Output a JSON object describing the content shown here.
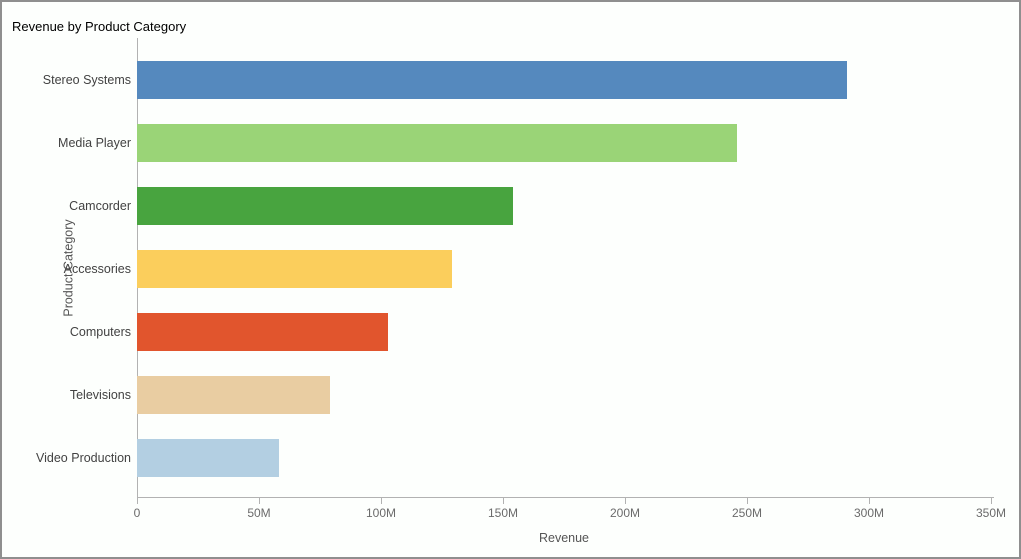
{
  "title": "Revenue by Product Category",
  "chart_data": {
    "type": "bar",
    "orientation": "horizontal",
    "title": "Revenue by Product Category",
    "xlabel": "Revenue",
    "ylabel": "Product Category",
    "unit": "M",
    "xlim_millions": [
      0,
      350
    ],
    "grid": false,
    "legend": false,
    "background_color": "#fdfffd",
    "axis_color": "#b2b2b2",
    "categories": [
      "Stereo Systems",
      "Media Player",
      "Camcorder",
      "Accessories",
      "Computers",
      "Televisions",
      "Video Production"
    ],
    "values_millions": [
      291,
      246,
      154,
      129,
      103,
      79,
      58
    ],
    "bar_colors": [
      "#5589BE",
      "#9AD477",
      "#48A43F",
      "#FBCE5C",
      "#E1552D",
      "#E9CDA2",
      "#B3CFE2"
    ],
    "x_ticks": [
      {
        "value": 0,
        "label": "0"
      },
      {
        "value": 50,
        "label": "50M"
      },
      {
        "value": 100,
        "label": "100M"
      },
      {
        "value": 150,
        "label": "150M"
      },
      {
        "value": 200,
        "label": "200M"
      },
      {
        "value": 250,
        "label": "250M"
      },
      {
        "value": 300,
        "label": "300M"
      },
      {
        "value": 350,
        "label": "350M"
      }
    ]
  }
}
